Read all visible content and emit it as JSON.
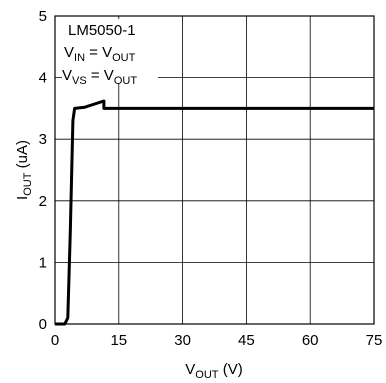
{
  "chart_data": {
    "type": "line",
    "title": "",
    "x_axis": {
      "label_main": "V",
      "label_sub": "OUT",
      "label_unit": " (V)",
      "min": 0,
      "max": 75,
      "ticks": [
        0,
        15,
        30,
        45,
        60,
        75
      ]
    },
    "y_axis": {
      "label_main": "I",
      "label_sub": "OUT",
      "label_unit": " (uA)",
      "min": 0,
      "max": 5,
      "ticks": [
        0,
        1,
        2,
        3,
        4,
        5
      ]
    },
    "grid": true,
    "annotations": {
      "device": "LM5050-1",
      "line2": {
        "a": "V",
        "a_sub": "IN",
        "eq": " = V",
        "b_sub": "OUT"
      },
      "line3": {
        "a": "V",
        "a_sub": "VS",
        "eq": " = V",
        "b_sub": "OUT"
      }
    },
    "series": [
      {
        "color": "#000000",
        "points": [
          [
            0,
            0
          ],
          [
            2.3,
            0
          ],
          [
            3.0,
            0.1
          ],
          [
            3.6,
            1.5
          ],
          [
            4.2,
            3.3
          ],
          [
            4.6,
            3.5
          ],
          [
            7,
            3.52
          ],
          [
            11.5,
            3.62
          ],
          [
            11.5,
            3.5
          ],
          [
            75,
            3.5
          ]
        ]
      }
    ]
  }
}
